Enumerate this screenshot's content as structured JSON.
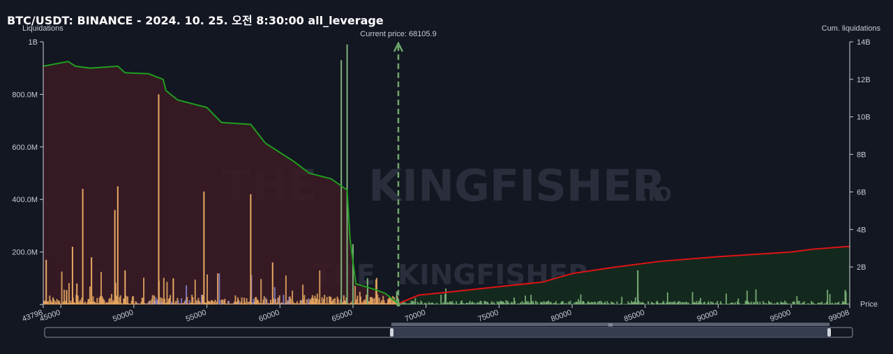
{
  "title": "BTC/USDT: BINANCE - 2024. 10. 25. 오전 8:30:00 all_leverage",
  "watermark": {
    "brand": "THE",
    "brand2": "KINGFISHER",
    "suffix": ".IO"
  },
  "colors": {
    "background": "#131722",
    "left_area": "#3a1b24",
    "right_area": "#132a1f",
    "left_cum_line": "#1f9e1f",
    "right_cum_line": "#e01414",
    "current_price_line": "#6fa86a",
    "bar_orange": "#e8a862",
    "bar_purple": "#8a86d0",
    "bar_green": "#7fb27a"
  },
  "chart_data": {
    "type": "bar",
    "title": "BTC/USDT: BINANCE - 2024. 10. 25. 오전 8:30:00 all_leverage",
    "xlabel": "Price",
    "ylabel_left": "Liquidations",
    "ylabel_right": "Cum. liquidations",
    "x_range": [
      43798,
      99008
    ],
    "x_ticks": [
      43798,
      45000,
      50000,
      55000,
      60000,
      65000,
      70000,
      75000,
      80000,
      85000,
      90000,
      95000,
      99008
    ],
    "y_left_range": [
      0,
      1000000000
    ],
    "y_left_ticks": [
      "",
      "200.0M",
      "400.0M",
      "600.0M",
      "800.0M",
      "1B"
    ],
    "y_right_range": [
      0,
      14000000000
    ],
    "y_right_ticks": [
      "2B",
      "4B",
      "6B",
      "8B",
      "10B",
      "12B",
      "14B"
    ],
    "current_price": 68105.9,
    "current_price_label": "Current price: 68105.9",
    "large_bars": [
      {
        "x": 44000,
        "y": 170000000,
        "series": "orange"
      },
      {
        "x": 45400,
        "y": 55000000,
        "series": "orange"
      },
      {
        "x": 45800,
        "y": 220000000,
        "series": "orange"
      },
      {
        "x": 46100,
        "y": 80000000,
        "series": "orange"
      },
      {
        "x": 46500,
        "y": 440000000,
        "series": "orange"
      },
      {
        "x": 47100,
        "y": 180000000,
        "series": "orange"
      },
      {
        "x": 48700,
        "y": 360000000,
        "series": "orange"
      },
      {
        "x": 48900,
        "y": 450000000,
        "series": "orange"
      },
      {
        "x": 49400,
        "y": 130000000,
        "series": "orange"
      },
      {
        "x": 51700,
        "y": 800000000,
        "series": "orange"
      },
      {
        "x": 52700,
        "y": 100000000,
        "series": "orange"
      },
      {
        "x": 54800,
        "y": 430000000,
        "series": "orange"
      },
      {
        "x": 58000,
        "y": 420000000,
        "series": "orange"
      },
      {
        "x": 59500,
        "y": 160000000,
        "series": "orange"
      },
      {
        "x": 64200,
        "y": 930000000,
        "series": "green"
      },
      {
        "x": 64600,
        "y": 990000000,
        "series": "green"
      },
      {
        "x": 65000,
        "y": 230000000,
        "series": "green"
      },
      {
        "x": 66000,
        "y": 100000000,
        "series": "green"
      },
      {
        "x": 68000,
        "y": 50000000,
        "series": "green"
      },
      {
        "x": 84500,
        "y": 130000000,
        "series": "green"
      },
      {
        "x": 98700,
        "y": 55000000,
        "series": "green"
      }
    ],
    "cum_left": [
      [
        43798,
        12700000000
      ],
      [
        45500,
        12950000000
      ],
      [
        46000,
        12700000000
      ],
      [
        47000,
        12600000000
      ],
      [
        48900,
        12700000000
      ],
      [
        49400,
        12350000000
      ],
      [
        51000,
        12300000000
      ],
      [
        52000,
        12000000000
      ],
      [
        52200,
        11400000000
      ],
      [
        53000,
        10900000000
      ],
      [
        55000,
        10500000000
      ],
      [
        56000,
        9700000000
      ],
      [
        58000,
        9600000000
      ],
      [
        59000,
        8600000000
      ],
      [
        61000,
        7600000000
      ],
      [
        62000,
        7000000000
      ],
      [
        63500,
        6700000000
      ],
      [
        64600,
        6100000000
      ],
      [
        64800,
        3500000000
      ],
      [
        65200,
        1100000000
      ],
      [
        66500,
        800000000
      ],
      [
        67200,
        600000000
      ],
      [
        68105,
        50000000
      ]
    ],
    "cum_right": [
      [
        68105,
        50000000
      ],
      [
        69500,
        500000000
      ],
      [
        72000,
        700000000
      ],
      [
        75000,
        950000000
      ],
      [
        78000,
        1200000000
      ],
      [
        80000,
        1650000000
      ],
      [
        83000,
        2000000000
      ],
      [
        86000,
        2300000000
      ],
      [
        90000,
        2550000000
      ],
      [
        95000,
        2800000000
      ],
      [
        96500,
        2950000000
      ],
      [
        99008,
        3100000000
      ]
    ]
  }
}
